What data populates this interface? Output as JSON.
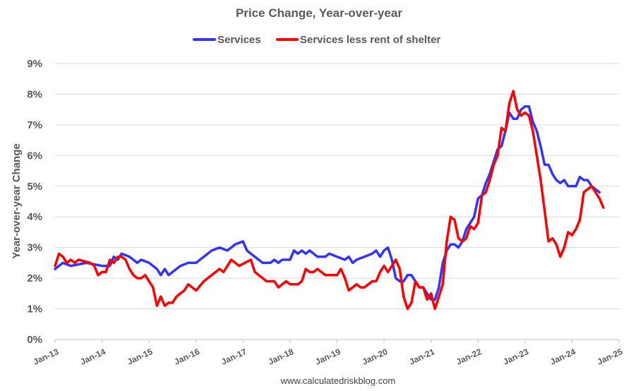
{
  "chart_data": {
    "type": "line",
    "title": "Price Change, Year-over-year",
    "ylabel": "Year-over-year Change",
    "xlabel": "",
    "ylim": [
      0,
      9
    ],
    "yticks": [
      "0%",
      "1%",
      "2%",
      "3%",
      "4%",
      "5%",
      "6%",
      "7%",
      "8%",
      "9%"
    ],
    "xlim": [
      "2013-01",
      "2025-01"
    ],
    "xticks": [
      "Jan-13",
      "Jan-14",
      "Jan-15",
      "Jan-16",
      "Jan-17",
      "Jan-18",
      "Jan-19",
      "Jan-20",
      "Jan-21",
      "Jan-22",
      "Jan-23",
      "Jan-24",
      "Jan-25"
    ],
    "grid": true,
    "legend_position": "top",
    "source": "www.calculatedriskblog.com",
    "series": [
      {
        "name": "Services",
        "color": "#3333ff",
        "points": [
          [
            "2013-01",
            2.3
          ],
          [
            "2013-03",
            2.5
          ],
          [
            "2013-05",
            2.4
          ],
          [
            "2013-09",
            2.5
          ],
          [
            "2014-01",
            2.4
          ],
          [
            "2014-03",
            2.4
          ],
          [
            "2014-04",
            2.7
          ],
          [
            "2014-05",
            2.6
          ],
          [
            "2014-06",
            2.8
          ],
          [
            "2014-08",
            2.7
          ],
          [
            "2014-10",
            2.5
          ],
          [
            "2014-11",
            2.6
          ],
          [
            "2015-01",
            2.5
          ],
          [
            "2015-03",
            2.3
          ],
          [
            "2015-04",
            2.1
          ],
          [
            "2015-05",
            2.3
          ],
          [
            "2015-06",
            2.1
          ],
          [
            "2015-07",
            2.2
          ],
          [
            "2015-09",
            2.4
          ],
          [
            "2015-11",
            2.5
          ],
          [
            "2016-01",
            2.5
          ],
          [
            "2016-03",
            2.7
          ],
          [
            "2016-05",
            2.9
          ],
          [
            "2016-07",
            3.0
          ],
          [
            "2016-09",
            2.9
          ],
          [
            "2016-11",
            3.1
          ],
          [
            "2017-01",
            3.2
          ],
          [
            "2017-02",
            2.9
          ],
          [
            "2017-04",
            2.7
          ],
          [
            "2017-06",
            2.5
          ],
          [
            "2017-08",
            2.5
          ],
          [
            "2017-09",
            2.6
          ],
          [
            "2017-10",
            2.5
          ],
          [
            "2017-11",
            2.6
          ],
          [
            "2018-01",
            2.6
          ],
          [
            "2018-02",
            2.9
          ],
          [
            "2018-03",
            2.8
          ],
          [
            "2018-04",
            2.9
          ],
          [
            "2018-05",
            2.8
          ],
          [
            "2018-06",
            2.9
          ],
          [
            "2018-08",
            2.7
          ],
          [
            "2018-10",
            2.7
          ],
          [
            "2018-11",
            2.8
          ],
          [
            "2019-01",
            2.7
          ],
          [
            "2019-03",
            2.6
          ],
          [
            "2019-04",
            2.7
          ],
          [
            "2019-05",
            2.5
          ],
          [
            "2019-06",
            2.6
          ],
          [
            "2019-08",
            2.7
          ],
          [
            "2019-10",
            2.8
          ],
          [
            "2019-11",
            2.9
          ],
          [
            "2019-12",
            2.7
          ],
          [
            "2020-01",
            2.9
          ],
          [
            "2020-02",
            3.0
          ],
          [
            "2020-03",
            2.6
          ],
          [
            "2020-04",
            2.0
          ],
          [
            "2020-05",
            1.9
          ],
          [
            "2020-06",
            1.9
          ],
          [
            "2020-07",
            2.1
          ],
          [
            "2020-08",
            2.1
          ],
          [
            "2020-09",
            1.9
          ],
          [
            "2020-10",
            1.7
          ],
          [
            "2020-11",
            1.7
          ],
          [
            "2020-12",
            1.5
          ],
          [
            "2021-01",
            1.3
          ],
          [
            "2021-02",
            1.3
          ],
          [
            "2021-03",
            1.7
          ],
          [
            "2021-04",
            2.5
          ],
          [
            "2021-05",
            2.9
          ],
          [
            "2021-06",
            3.1
          ],
          [
            "2021-07",
            3.1
          ],
          [
            "2021-08",
            3.0
          ],
          [
            "2021-09",
            3.2
          ],
          [
            "2021-10",
            3.6
          ],
          [
            "2021-11",
            3.8
          ],
          [
            "2021-12",
            4.0
          ],
          [
            "2022-01",
            4.6
          ],
          [
            "2022-02",
            4.7
          ],
          [
            "2022-03",
            5.1
          ],
          [
            "2022-04",
            5.4
          ],
          [
            "2022-05",
            5.8
          ],
          [
            "2022-06",
            6.2
          ],
          [
            "2022-07",
            6.3
          ],
          [
            "2022-08",
            6.8
          ],
          [
            "2022-09",
            7.4
          ],
          [
            "2022-10",
            7.2
          ],
          [
            "2022-11",
            7.2
          ],
          [
            "2022-12",
            7.5
          ],
          [
            "2023-01",
            7.6
          ],
          [
            "2023-02",
            7.6
          ],
          [
            "2023-03",
            7.1
          ],
          [
            "2023-04",
            6.8
          ],
          [
            "2023-05",
            6.3
          ],
          [
            "2023-06",
            5.7
          ],
          [
            "2023-07",
            5.7
          ],
          [
            "2023-08",
            5.4
          ],
          [
            "2023-09",
            5.2
          ],
          [
            "2023-10",
            5.1
          ],
          [
            "2023-11",
            5.2
          ],
          [
            "2023-12",
            5.0
          ],
          [
            "2024-01",
            5.0
          ],
          [
            "2024-02",
            5.0
          ],
          [
            "2024-03",
            5.3
          ],
          [
            "2024-04",
            5.2
          ],
          [
            "2024-05",
            5.2
          ],
          [
            "2024-06",
            5.0
          ],
          [
            "2024-07",
            4.9
          ],
          [
            "2024-08",
            4.8
          ]
        ]
      },
      {
        "name": "Services less rent of shelter",
        "color": "#ff0000",
        "points": [
          [
            "2013-01",
            2.4
          ],
          [
            "2013-02",
            2.8
          ],
          [
            "2013-03",
            2.7
          ],
          [
            "2013-04",
            2.5
          ],
          [
            "2013-05",
            2.6
          ],
          [
            "2013-06",
            2.5
          ],
          [
            "2013-07",
            2.6
          ],
          [
            "2013-10",
            2.5
          ],
          [
            "2013-11",
            2.4
          ],
          [
            "2013-12",
            2.1
          ],
          [
            "2014-01",
            2.2
          ],
          [
            "2014-02",
            2.2
          ],
          [
            "2014-03",
            2.6
          ],
          [
            "2014-04",
            2.5
          ],
          [
            "2014-05",
            2.7
          ],
          [
            "2014-06",
            2.7
          ],
          [
            "2014-07",
            2.6
          ],
          [
            "2014-08",
            2.3
          ],
          [
            "2014-09",
            2.1
          ],
          [
            "2014-10",
            2.0
          ],
          [
            "2014-11",
            2.0
          ],
          [
            "2014-12",
            2.1
          ],
          [
            "2015-01",
            1.9
          ],
          [
            "2015-02",
            1.7
          ],
          [
            "2015-03",
            1.1
          ],
          [
            "2015-04",
            1.4
          ],
          [
            "2015-05",
            1.1
          ],
          [
            "2015-06",
            1.2
          ],
          [
            "2015-07",
            1.2
          ],
          [
            "2015-08",
            1.4
          ],
          [
            "2015-09",
            1.5
          ],
          [
            "2015-10",
            1.6
          ],
          [
            "2015-11",
            1.8
          ],
          [
            "2015-12",
            1.7
          ],
          [
            "2016-01",
            1.6
          ],
          [
            "2016-03",
            1.9
          ],
          [
            "2016-05",
            2.1
          ],
          [
            "2016-07",
            2.3
          ],
          [
            "2016-08",
            2.2
          ],
          [
            "2016-10",
            2.6
          ],
          [
            "2016-12",
            2.4
          ],
          [
            "2017-03",
            2.6
          ],
          [
            "2017-04",
            2.2
          ],
          [
            "2017-06",
            2.0
          ],
          [
            "2017-07",
            1.9
          ],
          [
            "2017-09",
            1.9
          ],
          [
            "2017-10",
            1.7
          ],
          [
            "2017-12",
            1.9
          ],
          [
            "2018-01",
            1.8
          ],
          [
            "2018-03",
            1.8
          ],
          [
            "2018-04",
            1.9
          ],
          [
            "2018-05",
            2.3
          ],
          [
            "2018-06",
            2.2
          ],
          [
            "2018-07",
            2.2
          ],
          [
            "2018-08",
            2.3
          ],
          [
            "2018-09",
            2.2
          ],
          [
            "2018-10",
            2.1
          ],
          [
            "2018-12",
            2.1
          ],
          [
            "2019-01",
            2.1
          ],
          [
            "2019-02",
            2.3
          ],
          [
            "2019-03",
            2.0
          ],
          [
            "2019-04",
            1.6
          ],
          [
            "2019-05",
            1.7
          ],
          [
            "2019-06",
            1.8
          ],
          [
            "2019-07",
            1.7
          ],
          [
            "2019-08",
            1.7
          ],
          [
            "2019-09",
            1.8
          ],
          [
            "2019-10",
            1.9
          ],
          [
            "2019-11",
            1.9
          ],
          [
            "2019-12",
            2.2
          ],
          [
            "2020-01",
            2.4
          ],
          [
            "2020-02",
            2.2
          ],
          [
            "2020-03",
            2.4
          ],
          [
            "2020-04",
            2.6
          ],
          [
            "2020-05",
            2.3
          ],
          [
            "2020-06",
            1.4
          ],
          [
            "2020-07",
            1.0
          ],
          [
            "2020-08",
            1.2
          ],
          [
            "2020-09",
            1.9
          ],
          [
            "2020-10",
            1.7
          ],
          [
            "2020-11",
            1.7
          ],
          [
            "2020-12",
            1.3
          ],
          [
            "2021-01",
            1.5
          ],
          [
            "2021-02",
            1.0
          ],
          [
            "2021-03",
            1.4
          ],
          [
            "2021-04",
            1.8
          ],
          [
            "2021-05",
            3.2
          ],
          [
            "2021-06",
            4.0
          ],
          [
            "2021-07",
            3.9
          ],
          [
            "2021-08",
            3.3
          ],
          [
            "2021-09",
            3.2
          ],
          [
            "2021-10",
            3.3
          ],
          [
            "2021-11",
            3.7
          ],
          [
            "2021-12",
            3.6
          ],
          [
            "2022-01",
            3.8
          ],
          [
            "2022-02",
            4.7
          ],
          [
            "2022-03",
            4.8
          ],
          [
            "2022-04",
            5.2
          ],
          [
            "2022-05",
            5.7
          ],
          [
            "2022-06",
            6.0
          ],
          [
            "2022-07",
            6.9
          ],
          [
            "2022-08",
            6.8
          ],
          [
            "2022-09",
            7.7
          ],
          [
            "2022-10",
            8.1
          ],
          [
            "2022-11",
            7.5
          ],
          [
            "2022-12",
            7.3
          ],
          [
            "2023-01",
            7.4
          ],
          [
            "2023-02",
            7.3
          ],
          [
            "2023-03",
            6.8
          ],
          [
            "2023-04",
            6.0
          ],
          [
            "2023-05",
            5.2
          ],
          [
            "2023-06",
            4.2
          ],
          [
            "2023-07",
            3.2
          ],
          [
            "2023-08",
            3.3
          ],
          [
            "2023-09",
            3.1
          ],
          [
            "2023-10",
            2.7
          ],
          [
            "2023-11",
            3.0
          ],
          [
            "2023-12",
            3.5
          ],
          [
            "2024-01",
            3.4
          ],
          [
            "2024-02",
            3.6
          ],
          [
            "2024-03",
            3.9
          ],
          [
            "2024-04",
            4.8
          ],
          [
            "2024-05",
            4.9
          ],
          [
            "2024-06",
            5.0
          ],
          [
            "2024-07",
            4.8
          ],
          [
            "2024-08",
            4.6
          ],
          [
            "2024-09",
            4.3
          ]
        ]
      }
    ]
  }
}
